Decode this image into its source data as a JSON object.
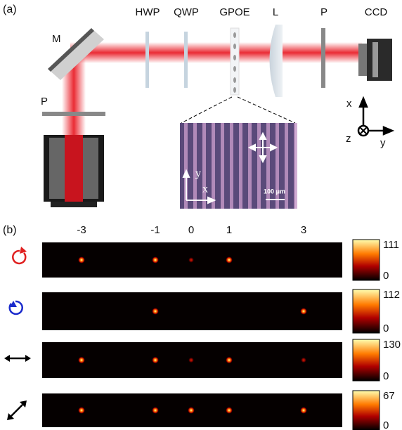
{
  "panel_a": {
    "label": "(a)",
    "components": [
      "HWP",
      "QWP",
      "GPOE",
      "L",
      "P",
      "CCD"
    ],
    "mirror": "M",
    "polarizer": "P",
    "axes": {
      "x": "x",
      "y": "y",
      "z": "z"
    },
    "inset": {
      "y": "y",
      "x": "x",
      "scale": "100 μm"
    }
  },
  "panel_b": {
    "label": "(b)",
    "orders": [
      "-3",
      "-1",
      "0",
      "1",
      "3"
    ],
    "colorbars": [
      {
        "max": "111",
        "min": "0"
      },
      {
        "max": "112",
        "min": "0"
      },
      {
        "max": "130",
        "min": "0"
      },
      {
        "max": "67",
        "min": "0"
      }
    ]
  }
}
